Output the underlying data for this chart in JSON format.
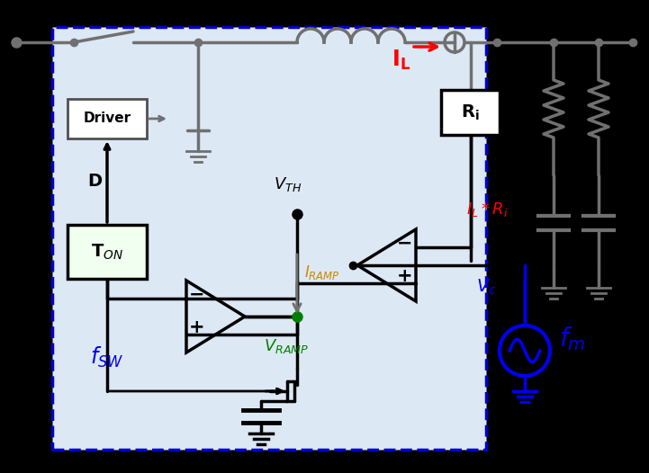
{
  "bg_color": "#000000",
  "box_color": "#dde8f5",
  "box_edge_color": "#0000cc",
  "gray": "#707070",
  "dark_gray": "#505050",
  "black": "#000000",
  "blue": "#0000ee",
  "red": "#ff0000",
  "green": "#008000",
  "orange": "#cc8800",
  "white": "#ffffff",
  "light_green": "#f0fff0",
  "figsize": [
    7.21,
    5.26
  ],
  "dpi": 100
}
